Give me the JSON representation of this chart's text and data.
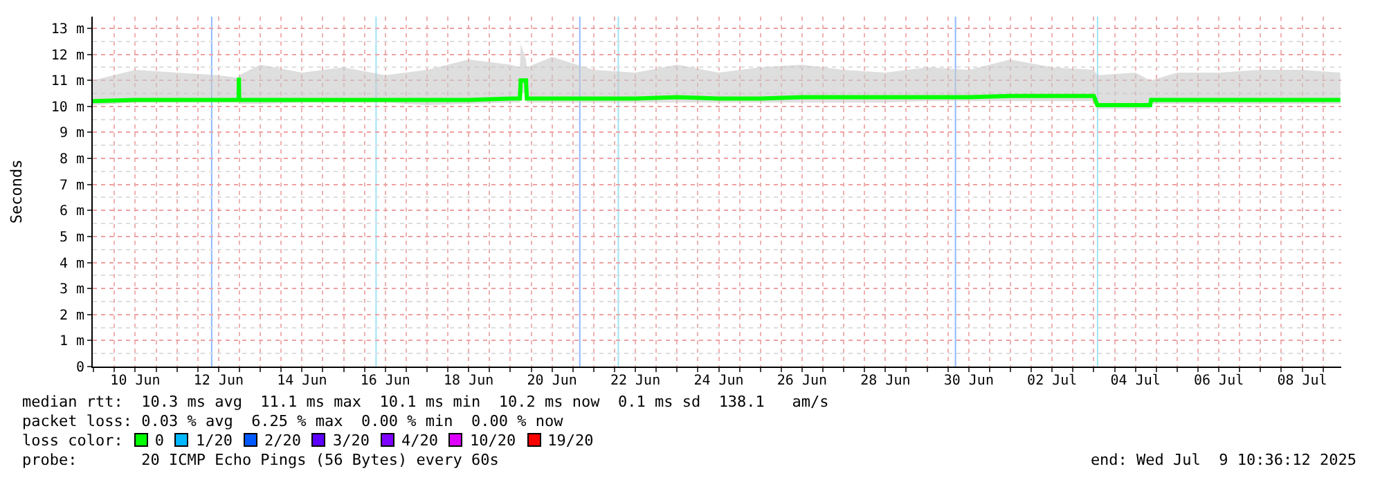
{
  "chart_data": {
    "type": "line",
    "ylabel": "Seconds",
    "x": [
      "2025-06-09T11:30",
      "2025-06-10T12:00",
      "2025-06-11T12:00",
      "2025-06-12T12:00",
      "2025-06-12T23:30",
      "2025-06-12T23:40",
      "2025-06-12T23:50",
      "2025-06-13T12:00",
      "2025-06-14T12:00",
      "2025-06-15T12:00",
      "2025-06-16T12:00",
      "2025-06-17T12:00",
      "2025-06-18T12:00",
      "2025-06-19T12:00",
      "2025-06-19T17:30",
      "2025-06-19T18:00",
      "2025-06-19T21:00",
      "2025-06-19T21:30",
      "2025-06-20T12:00",
      "2025-06-21T12:00",
      "2025-06-22T12:00",
      "2025-06-23T12:00",
      "2025-06-24T12:00",
      "2025-06-25T12:00",
      "2025-06-26T12:00",
      "2025-06-27T12:00",
      "2025-06-28T12:00",
      "2025-06-29T12:00",
      "2025-06-30T12:00",
      "2025-07-01T12:00",
      "2025-07-02T12:00",
      "2025-07-03T12:00",
      "2025-07-03T14:00",
      "2025-07-04T12:00",
      "2025-07-04T20:30",
      "2025-07-04T21:00",
      "2025-07-05T12:00",
      "2025-07-06T12:00",
      "2025-07-07T12:00",
      "2025-07-08T12:00",
      "2025-07-09T10:00"
    ],
    "series": [
      {
        "color": "#00ff00",
        "values": [
          10.2,
          10.25,
          10.25,
          10.25,
          10.25,
          11.1,
          10.25,
          10.25,
          10.25,
          10.25,
          10.25,
          10.25,
          10.25,
          10.3,
          10.3,
          11.0,
          11.0,
          10.3,
          10.3,
          10.3,
          10.3,
          10.35,
          10.3,
          10.3,
          10.35,
          10.35,
          10.35,
          10.35,
          10.35,
          10.4,
          10.4,
          10.4,
          10.05,
          10.05,
          10.05,
          10.25,
          10.25,
          10.25,
          10.25,
          10.25,
          10.25
        ],
        "lower": [
          10.05,
          10.15,
          10.15,
          10.15,
          10.15,
          10.2,
          10.1,
          10.1,
          10.15,
          10.15,
          10.15,
          10.05,
          10.1,
          10.15,
          10.15,
          10.5,
          10.5,
          10.15,
          10.15,
          10.15,
          10.15,
          10.15,
          10.15,
          10.15,
          10.15,
          10.15,
          10.15,
          10.2,
          10.2,
          10.2,
          10.2,
          10.2,
          9.9,
          9.9,
          9.9,
          10.1,
          10.1,
          10.1,
          10.1,
          10.1,
          10.1
        ],
        "upper": [
          11.0,
          11.4,
          11.3,
          11.2,
          11.1,
          11.4,
          11.2,
          11.6,
          11.3,
          11.5,
          11.2,
          11.4,
          11.8,
          11.6,
          11.5,
          12.4,
          11.8,
          11.5,
          11.9,
          11.4,
          11.3,
          11.6,
          11.3,
          11.5,
          11.6,
          11.4,
          11.3,
          11.5,
          11.4,
          11.8,
          11.5,
          11.4,
          11.2,
          11.3,
          11.0,
          11.0,
          11.3,
          11.3,
          11.4,
          11.4,
          11.3
        ]
      }
    ],
    "xlim": [
      "2025-06-09T11:30",
      "2025-07-09T10:30"
    ],
    "xticks": [
      {
        "value": "2025-06-10T12:00",
        "label": "10 Jun"
      },
      {
        "value": "2025-06-12T12:00",
        "label": "12 Jun"
      },
      {
        "value": "2025-06-14T12:00",
        "label": "14 Jun"
      },
      {
        "value": "2025-06-16T12:00",
        "label": "16 Jun"
      },
      {
        "value": "2025-06-18T12:00",
        "label": "18 Jun"
      },
      {
        "value": "2025-06-20T12:00",
        "label": "20 Jun"
      },
      {
        "value": "2025-06-22T12:00",
        "label": "22 Jun"
      },
      {
        "value": "2025-06-24T12:00",
        "label": "24 Jun"
      },
      {
        "value": "2025-06-26T12:00",
        "label": "26 Jun"
      },
      {
        "value": "2025-06-28T12:00",
        "label": "28 Jun"
      },
      {
        "value": "2025-06-30T12:00",
        "label": "30 Jun"
      },
      {
        "value": "2025-07-02T12:00",
        "label": "02 Jul"
      },
      {
        "value": "2025-07-04T12:00",
        "label": "04 Jul"
      },
      {
        "value": "2025-07-06T12:00",
        "label": "06 Jul"
      },
      {
        "value": "2025-07-08T12:00",
        "label": "08 Jul"
      }
    ],
    "ylim": [
      0,
      13.45
    ],
    "yticks": [
      0,
      {
        "value": 1,
        "label": "1 m"
      },
      {
        "value": 2,
        "label": "2 m"
      },
      {
        "value": 3,
        "label": "3 m"
      },
      {
        "value": 4,
        "label": "4 m"
      },
      {
        "value": 5,
        "label": "5 m"
      },
      {
        "value": 6,
        "label": "6 m"
      },
      {
        "value": 7,
        "label": "7 m"
      },
      {
        "value": 8,
        "label": "8 m"
      },
      {
        "value": 9,
        "label": "9 m"
      },
      {
        "value": 10,
        "label": "10 m"
      },
      {
        "value": 11,
        "label": "11 m"
      },
      {
        "value": 12,
        "label": "12 m"
      },
      {
        "value": 13,
        "label": "13 m"
      }
    ],
    "grid": true,
    "ref_lines": [
      {
        "axis": "x",
        "value": "2025-06-12T08:00",
        "color": "#8fb8ff"
      },
      {
        "axis": "x",
        "value": "2025-06-16T06:40",
        "color": "#9fe3f7"
      },
      {
        "axis": "x",
        "value": "2025-06-21T04:00",
        "color": "#8fb8ff"
      },
      {
        "axis": "x",
        "value": "2025-06-22T02:10",
        "color": "#9fe3f7"
      },
      {
        "axis": "x",
        "value": "2025-06-30T04:20",
        "color": "#8fb8ff"
      },
      {
        "axis": "x",
        "value": "2025-07-03T14:10",
        "color": "#9fe3f7"
      }
    ],
    "annotations": [
      "median rtt:  10.3 ms avg  11.1 ms max  10.1 ms min  10.2 ms now  0.1 ms sd  138.1   am/s",
      "packet loss: 0.03 % avg  6.25 % max  0.00 % min  0.00 % now",
      "loss color:",
      "0",
      "1/20",
      "2/20",
      "3/20",
      "4/20",
      "10/20",
      "19/20",
      "probe:       20 ICMP Echo Pings (56 Bytes) every 60s",
      "end: Wed Jul  9 10:36:12 2025"
    ]
  }
}
